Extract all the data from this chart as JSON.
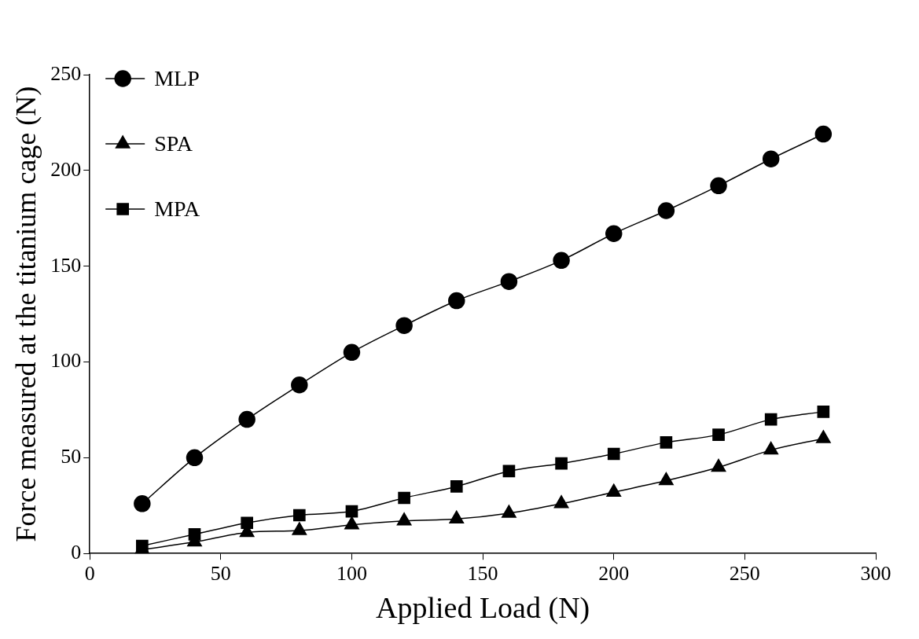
{
  "chart_data": {
    "type": "line",
    "xlabel": "Applied Load (N)",
    "ylabel": "Force measured at the titanium cage (N)",
    "x": [
      20,
      40,
      60,
      80,
      100,
      120,
      140,
      160,
      180,
      200,
      220,
      240,
      260,
      280
    ],
    "series": [
      {
        "name": "MLP",
        "color": "#000000",
        "marker": "circle",
        "values": [
          26,
          50,
          70,
          88,
          105,
          119,
          132,
          142,
          153,
          167,
          179,
          192,
          206,
          219
        ]
      },
      {
        "name": "SPA",
        "color": "#000000",
        "marker": "triangle",
        "values": [
          2,
          6,
          11,
          12,
          15,
          17,
          18,
          21,
          26,
          32,
          38,
          45,
          54,
          60
        ]
      },
      {
        "name": "MPA",
        "color": "#000000",
        "marker": "square",
        "values": [
          4,
          10,
          16,
          20,
          22,
          29,
          35,
          43,
          47,
          52,
          58,
          62,
          70,
          74
        ]
      }
    ],
    "xlim": [
      0,
      300
    ],
    "xticks": [
      0,
      50,
      100,
      150,
      200,
      250,
      300
    ],
    "ylim": [
      0,
      250
    ],
    "yticks": [
      0,
      50,
      100,
      150,
      200,
      250
    ],
    "grid": false,
    "legend": "top left",
    "line_style": "solid"
  }
}
